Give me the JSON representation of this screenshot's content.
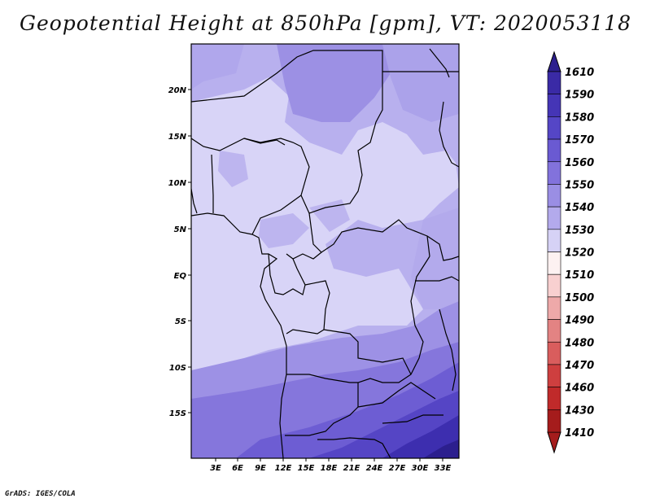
{
  "title": "Geopotential Height at 850hPa [gpm], VT: 2020053118",
  "credit": "GrADS: IGES/COLA",
  "map": {
    "region": "Central and Southern-Central Africa",
    "lat_labels": [
      "20N",
      "15N",
      "10N",
      "5N",
      "EQ",
      "5S",
      "10S",
      "15S"
    ],
    "lon_labels": [
      "3E",
      "6E",
      "9E",
      "12E",
      "15E",
      "18E",
      "21E",
      "24E",
      "27E",
      "30E",
      "33E"
    ]
  },
  "colorbar": {
    "labels": [
      "1610",
      "1590",
      "1580",
      "1570",
      "1560",
      "1550",
      "1540",
      "1530",
      "1520",
      "1510",
      "1500",
      "1490",
      "1480",
      "1470",
      "1460",
      "1430",
      "1410"
    ],
    "colors": [
      "#2c1f8e",
      "#3a2aa6",
      "#4535b6",
      "#5546c6",
      "#6a5ad2",
      "#8272dc",
      "#9a8ee4",
      "#b3aaec",
      "#d6d2f6",
      "#fdf1f1",
      "#f8d0d0",
      "#eea9a9",
      "#e38383",
      "#d95d5d",
      "#ce3f3f",
      "#c02a2a",
      "#a51c1c"
    ]
  }
}
